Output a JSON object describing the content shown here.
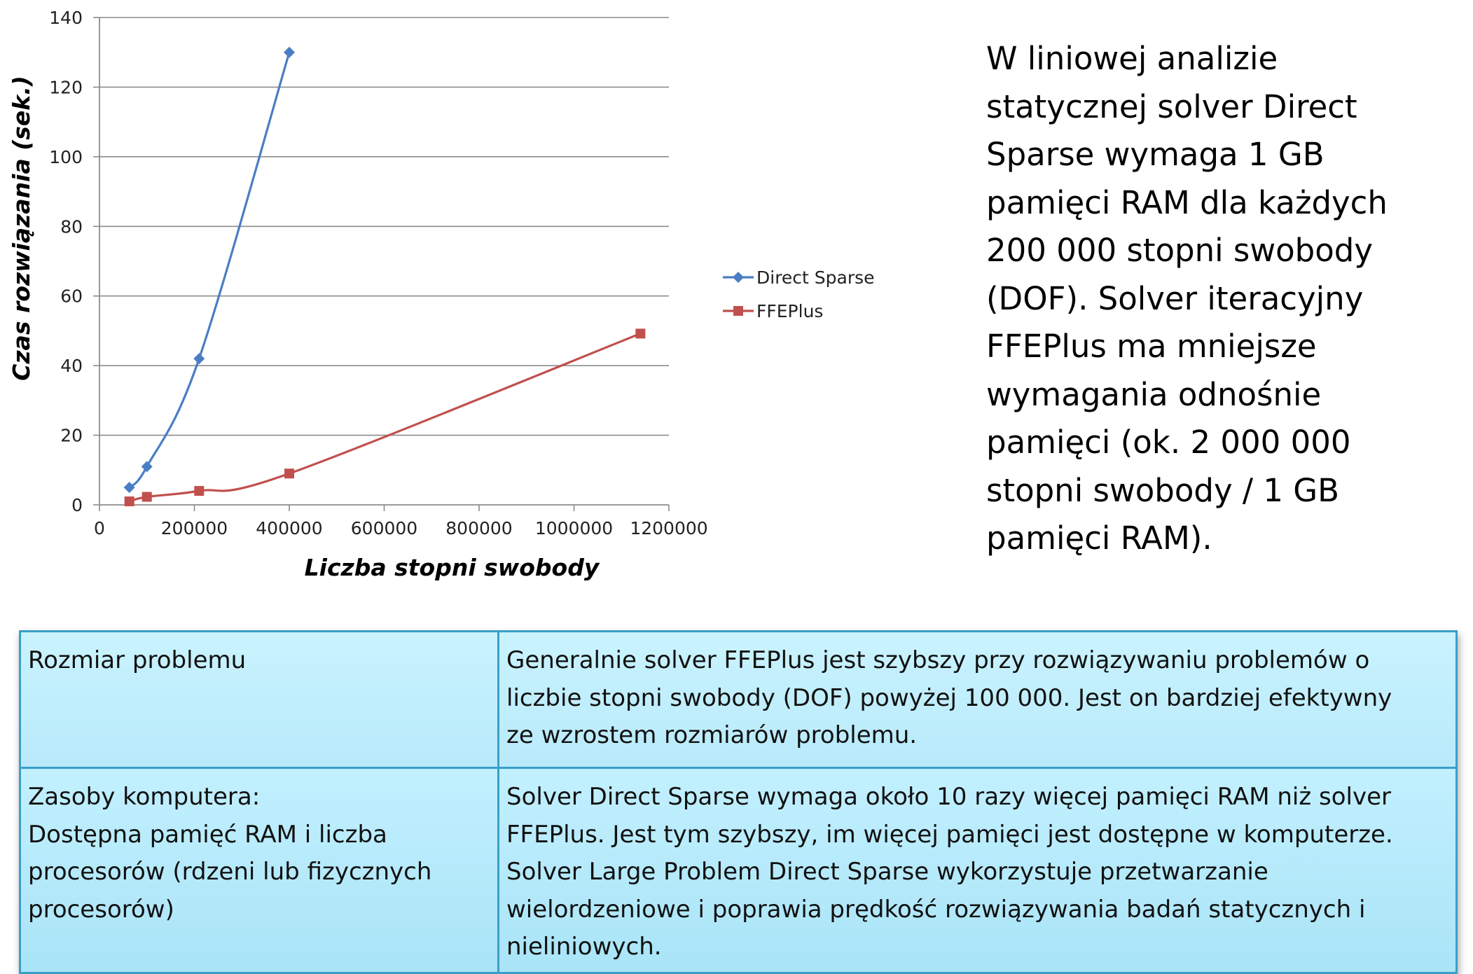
{
  "chart_data": {
    "type": "line",
    "title": "",
    "xlabel": "Liczba stopni swobody",
    "ylabel": "Czas rozwiązania (sek.)",
    "xlim": [
      0,
      1200000
    ],
    "ylim": [
      0,
      140
    ],
    "x_ticks": [
      "0",
      "200000",
      "400000",
      "600000",
      "800000",
      "1000000",
      "1200000"
    ],
    "y_ticks": [
      "0",
      "20",
      "40",
      "60",
      "80",
      "100",
      "120",
      "140"
    ],
    "grid": "horizontal",
    "legend_position": "right",
    "series": [
      {
        "name": "Direct Sparse",
        "color": "#4a7ec4",
        "marker": "diamond",
        "points": [
          [
            63000,
            5
          ],
          [
            100000,
            11
          ],
          [
            210000,
            42
          ],
          [
            400000,
            130
          ]
        ]
      },
      {
        "name": "FFEPlus",
        "color": "#c0504d",
        "marker": "square",
        "points": [
          [
            63000,
            1
          ],
          [
            100000,
            2.3
          ],
          [
            210000,
            4
          ],
          [
            400000,
            9
          ],
          [
            1140000,
            49.2
          ]
        ]
      }
    ]
  },
  "side_note": {
    "lines": [
      "W liniowej analizie",
      "statycznej solver Direct",
      "Sparse wymaga 1 GB",
      "pamięci RAM dla każdych",
      "200 000 stopni swobody",
      "(DOF). Solver iteracyjny",
      "FFEPlus ma mniejsze",
      "wymagania odnośnie",
      "pamięci (ok. 2 000 000",
      "stopni swobody / 1 GB",
      "pamięci RAM)."
    ]
  },
  "table": {
    "rows": [
      {
        "label": "Rozmiar problemu",
        "text": "Generalnie solver FFEPlus jest szybszy przy rozwiązywaniu problemów o\nliczbie stopni swobody (DOF) powyżej 100 000. Jest on bardziej efektywny\nze wzrostem rozmiarów problemu."
      },
      {
        "label": "Zasoby komputera:\nDostępna pamięć RAM i liczba\nprocesorów (rdzeni lub fizycznych\nprocesorów)",
        "text": "Solver Direct Sparse wymaga około 10 razy więcej pamięci RAM niż solver\nFFEPlus. Jest tym szybszy, im więcej pamięci jest dostępne w komputerze.\nSolver Large Problem Direct Sparse wykorzystuje przetwarzanie\nwielordzeniowe i poprawia prędkość rozwiązywania badań statycznych i\nnieliniowych."
      }
    ]
  }
}
